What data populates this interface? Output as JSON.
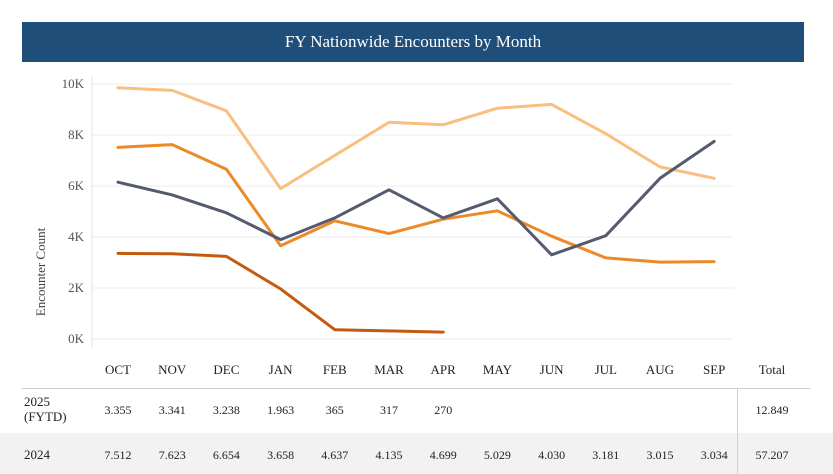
{
  "title": "FY Nationwide Encounters by Month",
  "chart_data": {
    "type": "line",
    "ylabel": "Encounter Count",
    "ylim": [
      0,
      10000
    ],
    "yticks": [
      0,
      2000,
      4000,
      6000,
      8000,
      10000
    ],
    "ytick_labels": [
      "0K",
      "2K",
      "4K",
      "6K",
      "8K",
      "10K"
    ],
    "categories": [
      "OCT",
      "NOV",
      "DEC",
      "JAN",
      "FEB",
      "MAR",
      "APR",
      "MAY",
      "JUN",
      "JUL",
      "AUG",
      "SEP"
    ],
    "total_label": "Total",
    "grid": true,
    "series": [
      {
        "values": [
          9850,
          9750,
          8950,
          5900,
          7200,
          8500,
          8400,
          9050,
          9200,
          8050,
          6750,
          6300
        ],
        "color": "#f8bf80"
      },
      {
        "values": [
          7512,
          7623,
          6654,
          3658,
          4637,
          4135,
          4699,
          5029,
          4030,
          3181,
          3015,
          3034
        ],
        "color": "#ed8a28"
      },
      {
        "values": [
          6150,
          5650,
          4950,
          3900,
          4750,
          5850,
          4750,
          5500,
          3300,
          4050,
          6300,
          7750
        ],
        "color": "#555b6e"
      },
      {
        "values": [
          3355,
          3341,
          3238,
          1963,
          365,
          317,
          270,
          null,
          null,
          null,
          null,
          null
        ],
        "color": "#c45a10"
      }
    ]
  },
  "table": {
    "rows": [
      {
        "label_line1": "2025",
        "label_line2": "(FYTD)",
        "values": [
          "3.355",
          "3.341",
          "3.238",
          "1.963",
          "365",
          "317",
          "270",
          "",
          "",
          "",
          "",
          ""
        ],
        "total": "12.849"
      },
      {
        "label_line1": "2024",
        "label_line2": "",
        "values": [
          "7.512",
          "7.623",
          "6.654",
          "3.658",
          "4.637",
          "4.135",
          "4.699",
          "5.029",
          "4.030",
          "3.181",
          "3.015",
          "3.034"
        ],
        "total": "57.207"
      }
    ]
  }
}
